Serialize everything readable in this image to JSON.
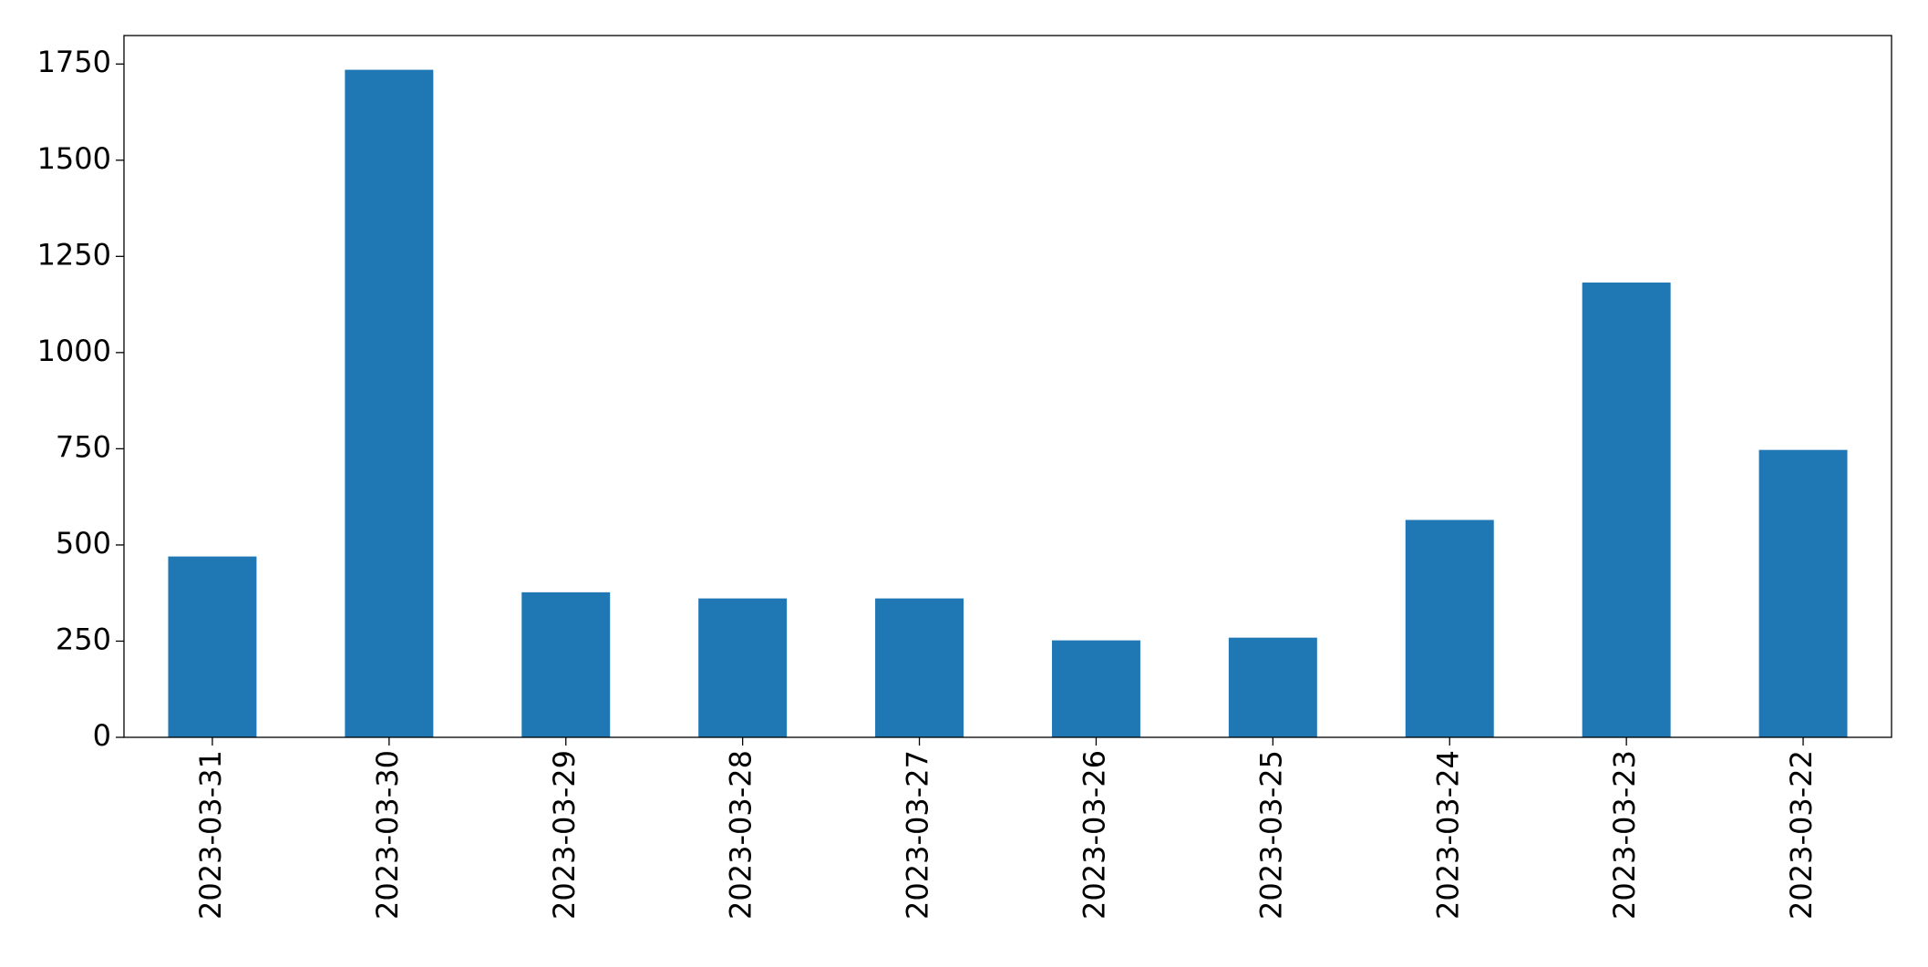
{
  "chart_data": {
    "type": "bar",
    "categories": [
      "2023-03-31",
      "2023-03-30",
      "2023-03-29",
      "2023-03-28",
      "2023-03-27",
      "2023-03-26",
      "2023-03-25",
      "2023-03-24",
      "2023-03-23",
      "2023-03-22"
    ],
    "values": [
      470,
      1735,
      377,
      361,
      361,
      252,
      259,
      565,
      1182,
      747
    ],
    "color": "#1f77b4",
    "ylim": [
      0,
      1824
    ],
    "yticks": [
      0,
      250,
      500,
      750,
      1000,
      1250,
      1500,
      1750
    ],
    "grid": false
  }
}
